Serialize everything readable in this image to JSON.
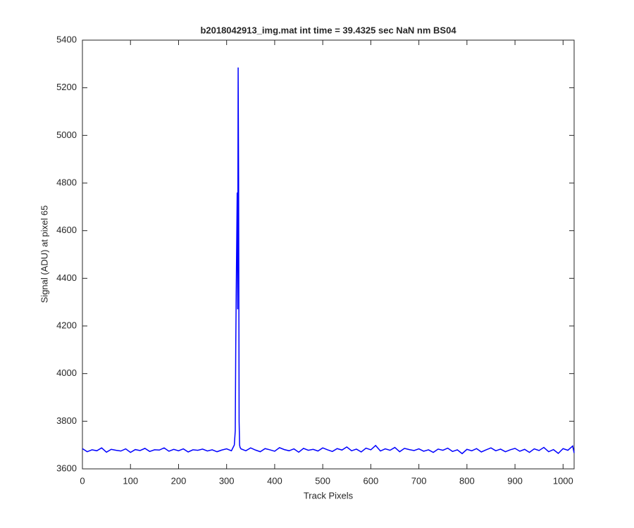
{
  "chart_data": {
    "type": "line",
    "title": "b2018042913_img.mat int time = 39.4325 sec  NaN nm BS04",
    "x_label": "Track Pixels",
    "y_label": "Signal (ADU) at pixel 65",
    "x": [
      0,
      10,
      20,
      30,
      40,
      50,
      60,
      70,
      80,
      90,
      100,
      110,
      120,
      130,
      140,
      150,
      160,
      170,
      180,
      190,
      200,
      210,
      220,
      230,
      240,
      250,
      260,
      270,
      280,
      290,
      300,
      310,
      316,
      318,
      319,
      320,
      321,
      322,
      323,
      324,
      325,
      326,
      327,
      328,
      330,
      340,
      350,
      360,
      370,
      380,
      390,
      400,
      410,
      420,
      430,
      440,
      450,
      460,
      470,
      480,
      490,
      500,
      510,
      520,
      530,
      540,
      550,
      560,
      570,
      580,
      590,
      600,
      610,
      620,
      630,
      640,
      650,
      660,
      670,
      680,
      690,
      700,
      710,
      720,
      730,
      740,
      750,
      760,
      770,
      780,
      790,
      800,
      810,
      820,
      830,
      840,
      850,
      860,
      870,
      880,
      890,
      900,
      910,
      920,
      930,
      940,
      950,
      960,
      970,
      980,
      990,
      1000,
      1010,
      1020,
      1023
    ],
    "series": [
      {
        "name": "signal",
        "color": "#0000ff",
        "values": [
          3685,
          3672,
          3680,
          3676,
          3688,
          3670,
          3682,
          3678,
          3675,
          3684,
          3669,
          3681,
          3677,
          3686,
          3673,
          3680,
          3679,
          3688,
          3674,
          3682,
          3676,
          3684,
          3671,
          3680,
          3678,
          3683,
          3675,
          3680,
          3672,
          3679,
          3684,
          3676,
          3700,
          3760,
          4110,
          4350,
          4550,
          4760,
          4270,
          5285,
          4800,
          3800,
          3700,
          3690,
          3684,
          3676,
          3688,
          3679,
          3672,
          3685,
          3680,
          3674,
          3689,
          3681,
          3676,
          3684,
          3670,
          3686,
          3678,
          3682,
          3675,
          3688,
          3680,
          3673,
          3685,
          3679,
          3692,
          3676,
          3683,
          3671,
          3687,
          3680,
          3698,
          3675,
          3684,
          3678,
          3690,
          3672,
          3686,
          3681,
          3677,
          3684,
          3674,
          3680,
          3669,
          3683,
          3678,
          3687,
          3673,
          3680,
          3664,
          3682,
          3676,
          3685,
          3671,
          3680,
          3688,
          3676,
          3683,
          3672,
          3680,
          3686,
          3674,
          3682,
          3669,
          3684,
          3677,
          3690,
          3672,
          3681,
          3665,
          3685,
          3678,
          3696,
          3667
        ]
      }
    ],
    "xlim": [
      0,
      1023
    ],
    "ylim": [
      3600,
      5400
    ],
    "xticks": [
      0,
      100,
      200,
      300,
      400,
      500,
      600,
      700,
      800,
      900,
      1000
    ],
    "yticks": [
      3600,
      3800,
      4000,
      4200,
      4400,
      4600,
      4800,
      5000,
      5200,
      5400
    ]
  }
}
